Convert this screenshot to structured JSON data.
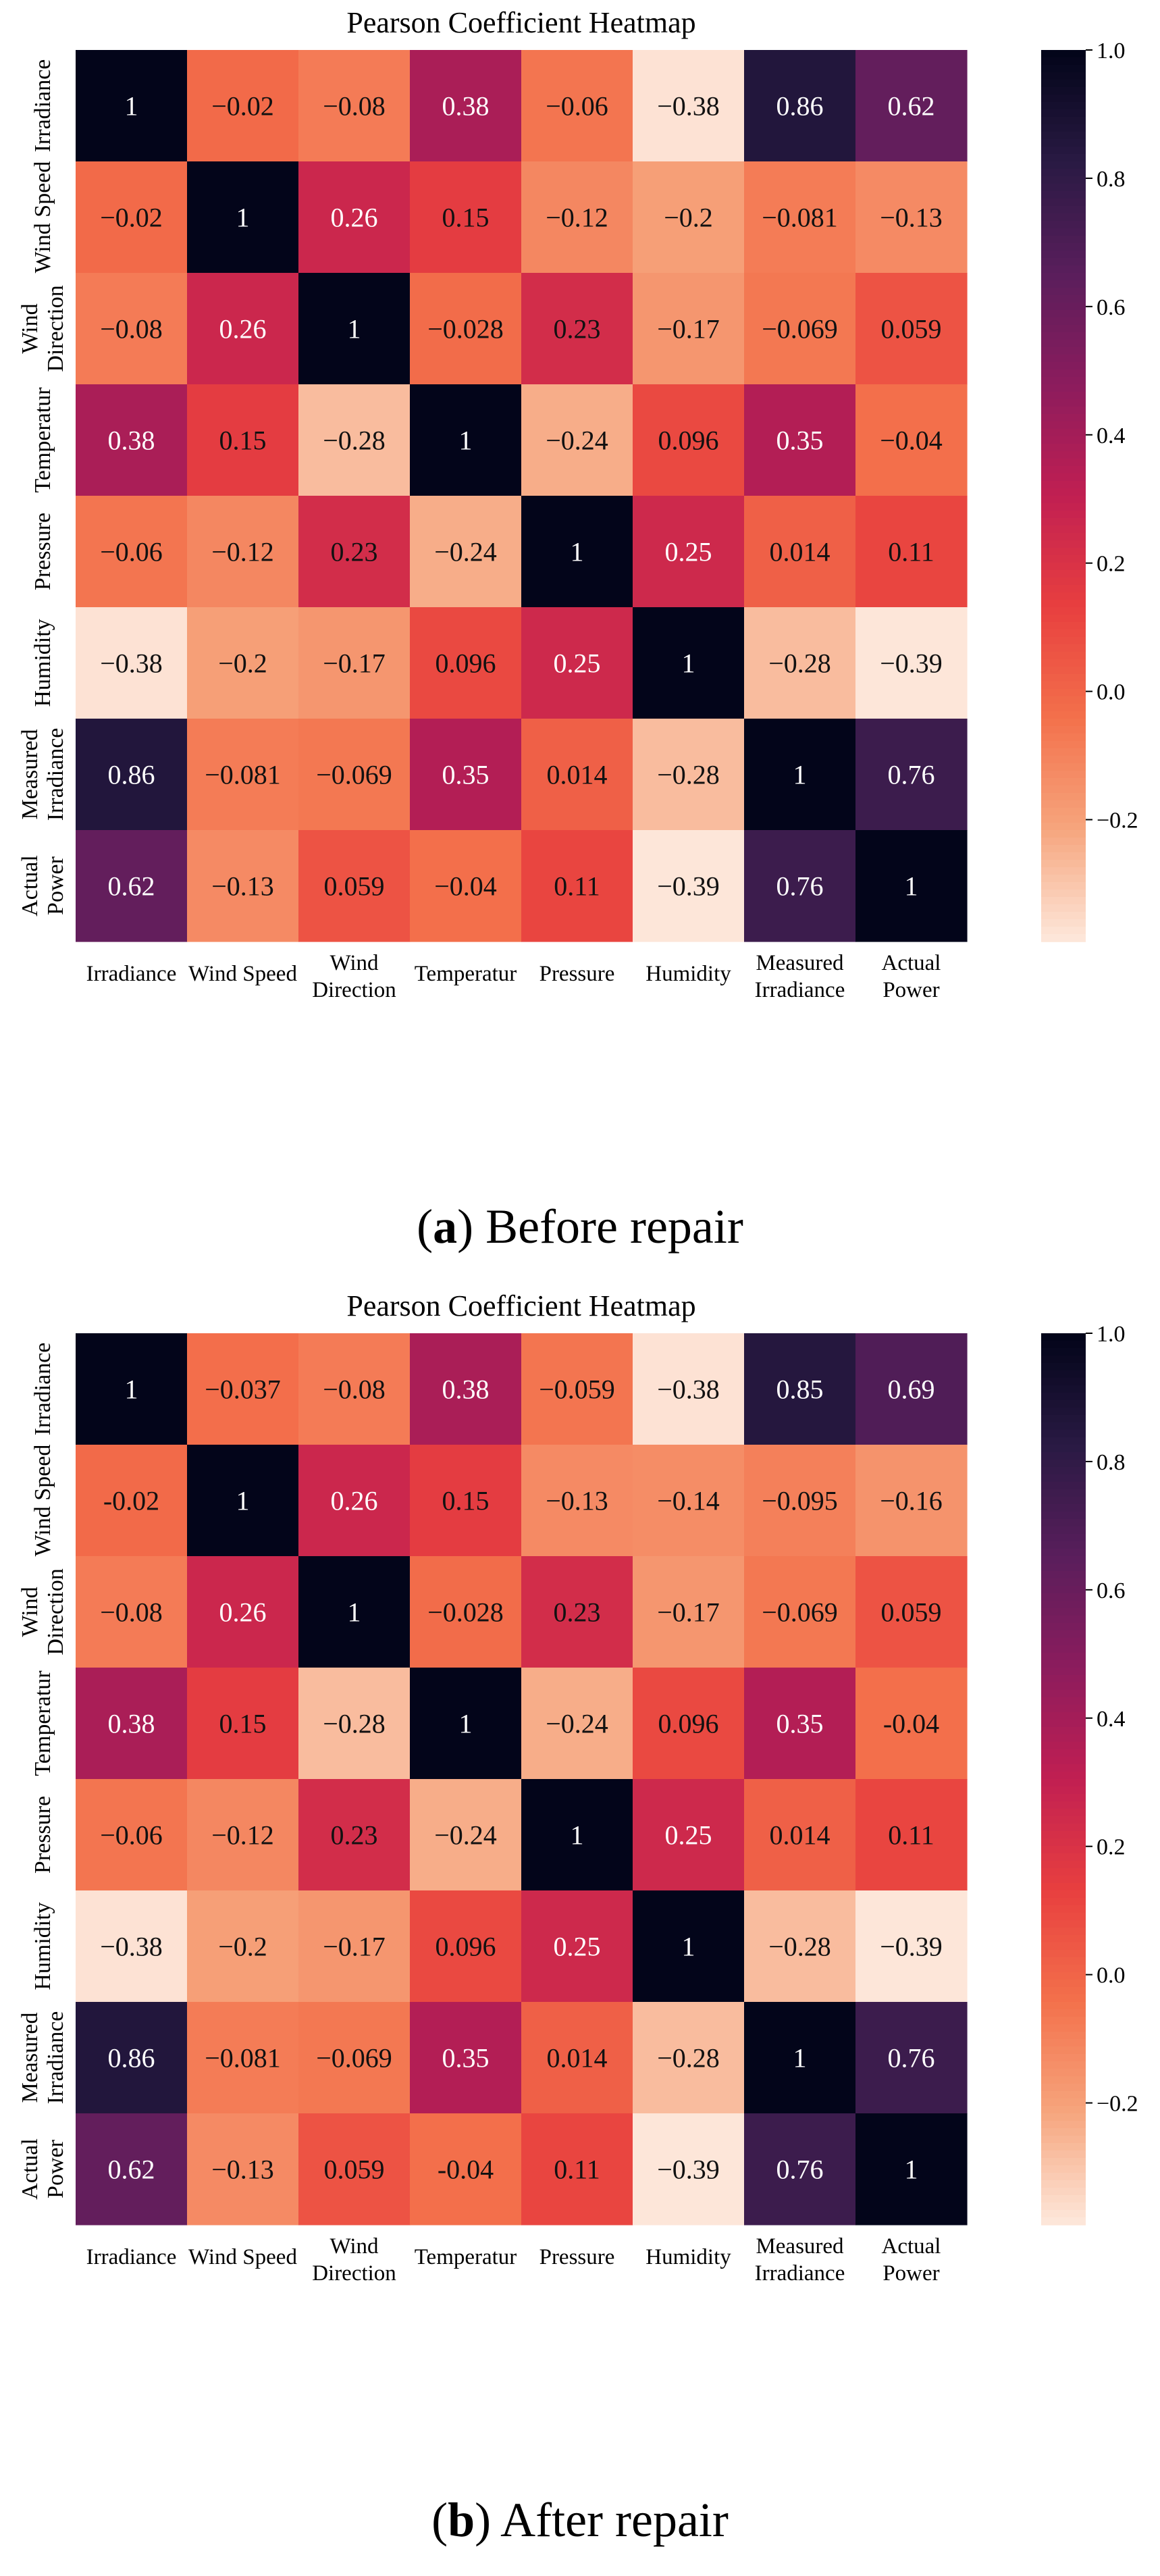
{
  "chart_data": [
    {
      "type": "heatmap",
      "title": "Pearson Coefficient Heatmap",
      "caption_letter": "a",
      "caption_text": "Before repair",
      "row_labels": [
        [
          "Irradiance"
        ],
        [
          "Wind Speed"
        ],
        [
          "Wind",
          "Direction"
        ],
        [
          "Temperatur"
        ],
        [
          "Pressure"
        ],
        [
          "Humidity"
        ],
        [
          "Measured",
          "Irradiance"
        ],
        [
          "Actual",
          "Power"
        ]
      ],
      "col_labels": [
        [
          "Irradiance"
        ],
        [
          "Wind Speed"
        ],
        [
          "Wind",
          "Direction"
        ],
        [
          "Temperatur"
        ],
        [
          "Pressure"
        ],
        [
          "Humidity"
        ],
        [
          "Measured",
          "Irradiance"
        ],
        [
          "Actual",
          "Power"
        ]
      ],
      "values": [
        [
          1,
          -0.02,
          -0.08,
          0.38,
          -0.06,
          -0.38,
          0.86,
          0.62
        ],
        [
          -0.02,
          1,
          0.26,
          0.15,
          -0.12,
          -0.2,
          -0.081,
          -0.13
        ],
        [
          -0.08,
          0.26,
          1,
          -0.028,
          0.23,
          -0.17,
          -0.069,
          0.059
        ],
        [
          0.38,
          0.15,
          -0.28,
          1,
          -0.24,
          0.096,
          0.35,
          -0.04
        ],
        [
          -0.06,
          -0.12,
          0.23,
          -0.24,
          1,
          0.25,
          0.014,
          0.11
        ],
        [
          -0.38,
          -0.2,
          -0.17,
          0.096,
          0.25,
          1,
          -0.28,
          -0.39
        ],
        [
          0.86,
          -0.081,
          -0.069,
          0.35,
          0.014,
          -0.28,
          1,
          0.76
        ],
        [
          0.62,
          -0.13,
          0.059,
          -0.04,
          0.11,
          -0.39,
          0.76,
          1
        ]
      ],
      "annotations": [
        [
          "1",
          "−0.02",
          "−0.08",
          "0.38",
          "−0.06",
          "−0.38",
          "0.86",
          "0.62"
        ],
        [
          "−0.02",
          "1",
          "0.26",
          "0.15",
          "−0.12",
          "−0.2",
          "−0.081",
          "−0.13"
        ],
        [
          "−0.08",
          "0.26",
          "1",
          "−0.028",
          "0.23",
          "−0.17",
          "−0.069",
          "0.059"
        ],
        [
          "0.38",
          "0.15",
          "−0.28",
          "1",
          "−0.24",
          "0.096",
          "0.35",
          "−0.04"
        ],
        [
          "−0.06",
          "−0.12",
          "0.23",
          "−0.24",
          "1",
          "0.25",
          "0.014",
          "0.11"
        ],
        [
          "−0.38",
          "−0.2",
          "−0.17",
          "0.096",
          "0.25",
          "1",
          "−0.28",
          "−0.39"
        ],
        [
          "0.86",
          "−0.081",
          "−0.069",
          "0.35",
          "0.014",
          "−0.28",
          "1",
          "0.76"
        ],
        [
          "0.62",
          "−0.13",
          "0.059",
          "−0.04",
          "0.11",
          "−0.39",
          "0.76",
          "1"
        ]
      ],
      "colorbar": {
        "vmin": -0.39,
        "vmax": 1.0,
        "ticks": [
          1.0,
          0.8,
          0.6,
          0.4,
          0.2,
          0.0,
          -0.2
        ],
        "tick_labels": [
          "1.0",
          "0.8",
          "0.6",
          "0.4",
          "0.2",
          "0.0",
          "−0.2"
        ]
      }
    },
    {
      "type": "heatmap",
      "title": "Pearson Coefficient Heatmap",
      "caption_letter": "b",
      "caption_text": "After repair",
      "row_labels": [
        [
          "Irradiance"
        ],
        [
          "Wind Speed"
        ],
        [
          "Wind",
          "Direction"
        ],
        [
          "Temperatur"
        ],
        [
          "Pressure"
        ],
        [
          "Humidity"
        ],
        [
          "Measured",
          "Irradiance"
        ],
        [
          "Actual",
          "Power"
        ]
      ],
      "col_labels": [
        [
          "Irradiance"
        ],
        [
          "Wind Speed"
        ],
        [
          "Wind",
          "Direction"
        ],
        [
          "Temperatur"
        ],
        [
          "Pressure"
        ],
        [
          "Humidity"
        ],
        [
          "Measured",
          "Irradiance"
        ],
        [
          "Actual",
          "Power"
        ]
      ],
      "values": [
        [
          1,
          -0.037,
          -0.08,
          0.38,
          -0.059,
          -0.38,
          0.85,
          0.69
        ],
        [
          -0.02,
          1,
          0.26,
          0.15,
          -0.13,
          -0.14,
          -0.095,
          -0.16
        ],
        [
          -0.08,
          0.26,
          1,
          -0.028,
          0.23,
          -0.17,
          -0.069,
          0.059
        ],
        [
          0.38,
          0.15,
          -0.28,
          1,
          -0.24,
          0.096,
          0.35,
          -0.04
        ],
        [
          -0.06,
          -0.12,
          0.23,
          -0.24,
          1,
          0.25,
          0.014,
          0.11
        ],
        [
          -0.38,
          -0.2,
          -0.17,
          0.096,
          0.25,
          1,
          -0.28,
          -0.39
        ],
        [
          0.86,
          -0.081,
          -0.069,
          0.35,
          0.014,
          -0.28,
          1,
          0.76
        ],
        [
          0.62,
          -0.13,
          0.059,
          -0.04,
          0.11,
          -0.39,
          0.76,
          1
        ]
      ],
      "annotations": [
        [
          "1",
          "−0.037",
          "−0.08",
          "0.38",
          "−0.059",
          "−0.38",
          "0.85",
          "0.69"
        ],
        [
          "-0.02",
          "1",
          "0.26",
          "0.15",
          "−0.13",
          "−0.14",
          "−0.095",
          "−0.16"
        ],
        [
          "−0.08",
          "0.26",
          "1",
          "−0.028",
          "0.23",
          "−0.17",
          "−0.069",
          "0.059"
        ],
        [
          "0.38",
          "0.15",
          "−0.28",
          "1",
          "−0.24",
          "0.096",
          "0.35",
          "-0.04"
        ],
        [
          "−0.06",
          "−0.12",
          "0.23",
          "−0.24",
          "1",
          "0.25",
          "0.014",
          "0.11"
        ],
        [
          "−0.38",
          "−0.2",
          "−0.17",
          "0.096",
          "0.25",
          "1",
          "−0.28",
          "−0.39"
        ],
        [
          "0.86",
          "−0.081",
          "−0.069",
          "0.35",
          "0.014",
          "−0.28",
          "1",
          "0.76"
        ],
        [
          "0.62",
          "−0.13",
          "0.059",
          "-0.04",
          "0.11",
          "−0.39",
          "0.76",
          "1"
        ]
      ],
      "colorbar": {
        "vmin": -0.39,
        "vmax": 1.0,
        "ticks": [
          1.0,
          0.8,
          0.6,
          0.4,
          0.2,
          0.0,
          -0.2
        ],
        "tick_labels": [
          "1.0",
          "0.8",
          "0.6",
          "0.4",
          "0.2",
          "0.0",
          "−0.2"
        ]
      }
    }
  ],
  "colormap": {
    "name": "rocket",
    "stops": [
      "#03051a",
      "#2a1a44",
      "#5a1e5c",
      "#8c1c5d",
      "#c11f52",
      "#e83f3f",
      "#f3704b",
      "#f6a47c",
      "#fde6d9"
    ]
  }
}
